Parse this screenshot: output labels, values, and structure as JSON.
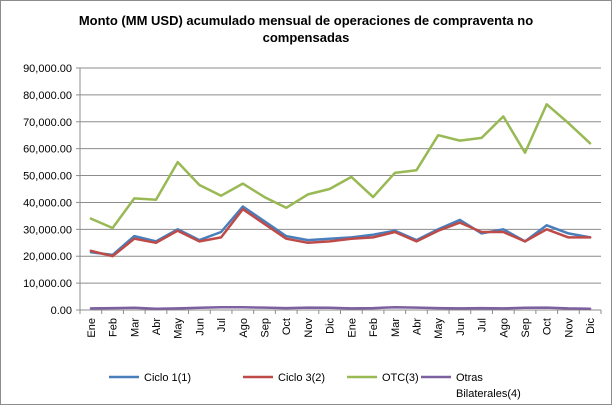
{
  "chart_data": {
    "type": "line",
    "title_line1": "Monto (MM USD) acumulado mensual de operaciones de compraventa no",
    "title_line2": "compensadas",
    "xlabel": "",
    "ylabel": "",
    "ylim": [
      0,
      90000
    ],
    "y_ticks": [
      "0.00",
      "10,000.00",
      "20,000.00",
      "30,000.00",
      "40,000.00",
      "50,000.00",
      "60,000.00",
      "70,000.00",
      "80,000.00",
      "90,000.00"
    ],
    "y_tick_values": [
      0,
      10000,
      20000,
      30000,
      40000,
      50000,
      60000,
      70000,
      80000,
      90000
    ],
    "categories": [
      "Ene",
      "Feb",
      "Mar",
      "Abr",
      "May",
      "Jun",
      "Jul",
      "Ago",
      "Sep",
      "Oct",
      "Nov",
      "Dic",
      "Ene",
      "Feb",
      "Mar",
      "Abr",
      "May",
      "Jun",
      "Jul",
      "Ago",
      "Sep",
      "Oct",
      "Nov",
      "Dic"
    ],
    "grid": "horizontal",
    "legend_position": "bottom",
    "series": [
      {
        "name": "Ciclo 1(1)",
        "color": "#4a7ebb",
        "values": [
          21500,
          20500,
          27500,
          25500,
          30000,
          26000,
          29000,
          38500,
          33000,
          27500,
          26000,
          26500,
          27000,
          28000,
          29500,
          26000,
          30000,
          33500,
          28500,
          30000,
          25500,
          31500,
          28500,
          27000
        ]
      },
      {
        "name": "Ciclo 3(2)",
        "color": "#be4b48",
        "values": [
          22000,
          20000,
          26500,
          25000,
          29500,
          25500,
          27000,
          37500,
          32000,
          26500,
          25000,
          25500,
          26500,
          27000,
          29000,
          25500,
          29500,
          32500,
          29000,
          29000,
          25500,
          30000,
          27000,
          27000
        ]
      },
      {
        "name": "OTC(3)",
        "color": "#98b954",
        "values": [
          34000,
          30500,
          41500,
          41000,
          55000,
          46500,
          42500,
          47000,
          42000,
          38000,
          43000,
          45000,
          49500,
          42000,
          51000,
          52000,
          65000,
          63000,
          64000,
          72000,
          58500,
          76500,
          69500,
          62000
        ]
      },
      {
        "name_line1": "Otras",
        "name_line2": "Bilaterales(4)",
        "color": "#7d60a0",
        "values": [
          600,
          700,
          800,
          500,
          600,
          800,
          1000,
          1000,
          900,
          700,
          900,
          800,
          600,
          700,
          1000,
          900,
          700,
          600,
          700,
          600,
          800,
          900,
          600,
          500
        ]
      }
    ]
  }
}
